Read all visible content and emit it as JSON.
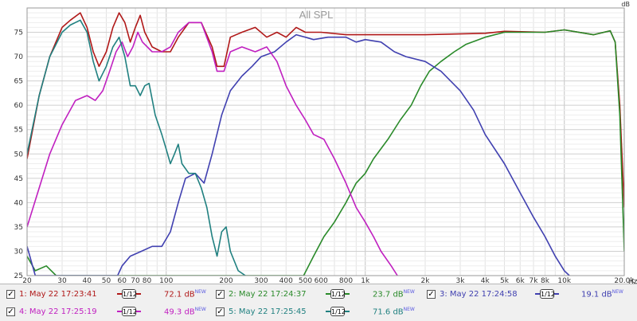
{
  "chart_data": {
    "type": "line",
    "title": "All SPL",
    "ylabel": "dB",
    "x_unit_label": "Hz",
    "x_scale": "log",
    "xlim": [
      20,
      20000
    ],
    "ylim": [
      25,
      80
    ],
    "grid": true,
    "y_ticks": [
      "25",
      "30",
      "35",
      "40",
      "45",
      "50",
      "55",
      "60",
      "65",
      "70",
      "75"
    ],
    "x_ticks": [
      {
        "v": 20,
        "t": "20"
      },
      {
        "v": 30,
        "t": "30"
      },
      {
        "v": 40,
        "t": "40"
      },
      {
        "v": 50,
        "t": "50"
      },
      {
        "v": 60,
        "t": "60"
      },
      {
        "v": 70,
        "t": "70"
      },
      {
        "v": 80,
        "t": "80"
      },
      {
        "v": 100,
        "t": "100"
      },
      {
        "v": 200,
        "t": "200"
      },
      {
        "v": 300,
        "t": "300"
      },
      {
        "v": 400,
        "t": "400"
      },
      {
        "v": 500,
        "t": "500"
      },
      {
        "v": 600,
        "t": "600"
      },
      {
        "v": 800,
        "t": "800"
      },
      {
        "v": 1000,
        "t": "1k"
      },
      {
        "v": 2000,
        "t": "2k"
      },
      {
        "v": 3000,
        "t": "3k"
      },
      {
        "v": 4000,
        "t": "4k"
      },
      {
        "v": 5000,
        "t": "5k"
      },
      {
        "v": 6000,
        "t": "6k"
      },
      {
        "v": 7000,
        "t": "7k"
      },
      {
        "v": 8000,
        "t": "8k"
      },
      {
        "v": 10000,
        "t": "10k"
      },
      {
        "v": 20000,
        "t": "20.0k"
      }
    ],
    "series": [
      {
        "name": "1: May 22 17:23:41",
        "color": "#b01818",
        "smoothing": "1/12",
        "value": "72.1 dB",
        "badge": "NEW",
        "points": [
          [
            20,
            49
          ],
          [
            23,
            62
          ],
          [
            26,
            70
          ],
          [
            30,
            76
          ],
          [
            33,
            77.5
          ],
          [
            37,
            79
          ],
          [
            40,
            76
          ],
          [
            43,
            71
          ],
          [
            46,
            68
          ],
          [
            50,
            71
          ],
          [
            54,
            76
          ],
          [
            58,
            79
          ],
          [
            62,
            77
          ],
          [
            66,
            73
          ],
          [
            70,
            76
          ],
          [
            74,
            78.5
          ],
          [
            78,
            75
          ],
          [
            85,
            72
          ],
          [
            95,
            71
          ],
          [
            105,
            71
          ],
          [
            115,
            74
          ],
          [
            130,
            77
          ],
          [
            150,
            77
          ],
          [
            170,
            72
          ],
          [
            180,
            68
          ],
          [
            195,
            68
          ],
          [
            210,
            74
          ],
          [
            240,
            75
          ],
          [
            280,
            76
          ],
          [
            320,
            74
          ],
          [
            360,
            75
          ],
          [
            400,
            74
          ],
          [
            450,
            76
          ],
          [
            500,
            75
          ],
          [
            600,
            75
          ],
          [
            800,
            74.5
          ],
          [
            1000,
            74.5
          ],
          [
            2000,
            74.5
          ],
          [
            4000,
            74.8
          ],
          [
            5000,
            75.2
          ],
          [
            8000,
            75
          ],
          [
            10000,
            75.5
          ],
          [
            14000,
            74.5
          ],
          [
            17000,
            75.3
          ],
          [
            18000,
            73
          ],
          [
            19000,
            60
          ],
          [
            20000,
            39
          ]
        ]
      },
      {
        "name": "2: May 22 17:24:37",
        "color": "#2a8a2a",
        "smoothing": "1/12",
        "value": "23.7 dB",
        "badge": "NEW",
        "points": [
          [
            20,
            29
          ],
          [
            22,
            26
          ],
          [
            25,
            27
          ],
          [
            28,
            25
          ],
          [
            490,
            25
          ],
          [
            550,
            29
          ],
          [
            620,
            33
          ],
          [
            700,
            36
          ],
          [
            800,
            40
          ],
          [
            900,
            44
          ],
          [
            1000,
            46
          ],
          [
            1100,
            49
          ],
          [
            1300,
            53
          ],
          [
            1500,
            57
          ],
          [
            1700,
            60
          ],
          [
            1900,
            64
          ],
          [
            2100,
            67
          ],
          [
            2400,
            69
          ],
          [
            2800,
            71
          ],
          [
            3200,
            72.5
          ],
          [
            4000,
            74
          ],
          [
            5000,
            75
          ],
          [
            8000,
            75
          ],
          [
            10000,
            75.5
          ],
          [
            14000,
            74.5
          ],
          [
            17000,
            75.3
          ],
          [
            18000,
            73
          ],
          [
            19000,
            58
          ],
          [
            20000,
            30
          ]
        ]
      },
      {
        "name": "3: May 22 17:24:58",
        "color": "#4040b0",
        "smoothing": "1/12",
        "value": "19.1 dB",
        "badge": "NEW",
        "points": [
          [
            20,
            31
          ],
          [
            22,
            25
          ],
          [
            57,
            25
          ],
          [
            60,
            27
          ],
          [
            66,
            29
          ],
          [
            75,
            30
          ],
          [
            85,
            31
          ],
          [
            95,
            31
          ],
          [
            105,
            34
          ],
          [
            115,
            40
          ],
          [
            125,
            45
          ],
          [
            140,
            46
          ],
          [
            155,
            44
          ],
          [
            170,
            50
          ],
          [
            190,
            58
          ],
          [
            210,
            63
          ],
          [
            240,
            66
          ],
          [
            270,
            68
          ],
          [
            300,
            70
          ],
          [
            350,
            71
          ],
          [
            400,
            73
          ],
          [
            450,
            74.5
          ],
          [
            500,
            74
          ],
          [
            550,
            73.5
          ],
          [
            650,
            74
          ],
          [
            800,
            74
          ],
          [
            900,
            73
          ],
          [
            1000,
            73.5
          ],
          [
            1200,
            73
          ],
          [
            1400,
            71
          ],
          [
            1600,
            70
          ],
          [
            2000,
            69
          ],
          [
            2400,
            67
          ],
          [
            3000,
            63
          ],
          [
            3500,
            59
          ],
          [
            4000,
            54
          ],
          [
            5000,
            48
          ],
          [
            6000,
            42
          ],
          [
            7000,
            37
          ],
          [
            8000,
            33
          ],
          [
            9000,
            29
          ],
          [
            10000,
            26
          ],
          [
            10600,
            25
          ]
        ]
      },
      {
        "name": "4: May 22 17:25:19",
        "color": "#c020c0",
        "smoothing": "1/12",
        "value": "49.3 dB",
        "badge": "NEW",
        "points": [
          [
            20,
            35
          ],
          [
            23,
            43
          ],
          [
            26,
            50
          ],
          [
            30,
            56
          ],
          [
            35,
            61
          ],
          [
            40,
            62
          ],
          [
            44,
            61
          ],
          [
            48,
            63
          ],
          [
            52,
            67
          ],
          [
            56,
            71
          ],
          [
            60,
            73
          ],
          [
            64,
            70
          ],
          [
            68,
            72
          ],
          [
            72,
            75
          ],
          [
            76,
            73
          ],
          [
            85,
            71
          ],
          [
            95,
            71
          ],
          [
            105,
            72
          ],
          [
            115,
            75
          ],
          [
            130,
            77
          ],
          [
            150,
            77
          ],
          [
            170,
            71
          ],
          [
            180,
            67
          ],
          [
            195,
            67
          ],
          [
            210,
            71
          ],
          [
            240,
            72
          ],
          [
            280,
            71
          ],
          [
            320,
            72
          ],
          [
            360,
            69
          ],
          [
            400,
            64
          ],
          [
            450,
            60
          ],
          [
            500,
            57
          ],
          [
            550,
            54
          ],
          [
            620,
            53
          ],
          [
            700,
            49
          ],
          [
            800,
            44
          ],
          [
            900,
            39
          ],
          [
            1000,
            36
          ],
          [
            1100,
            33
          ],
          [
            1200,
            30
          ],
          [
            1350,
            27
          ],
          [
            1450,
            25
          ]
        ]
      },
      {
        "name": "5: May 22 17:25:45",
        "color": "#208080",
        "smoothing": "1/12",
        "value": "71.6 dB",
        "badge": "NEW",
        "points": [
          [
            20,
            50
          ],
          [
            23,
            62
          ],
          [
            26,
            70
          ],
          [
            30,
            75
          ],
          [
            33,
            76.5
          ],
          [
            37,
            77.5
          ],
          [
            40,
            75
          ],
          [
            43,
            69
          ],
          [
            46,
            65
          ],
          [
            50,
            68
          ],
          [
            54,
            72
          ],
          [
            58,
            74
          ],
          [
            62,
            70
          ],
          [
            66,
            64
          ],
          [
            70,
            64
          ],
          [
            74,
            62
          ],
          [
            78,
            64
          ],
          [
            82,
            64.5
          ],
          [
            88,
            58
          ],
          [
            95,
            54
          ],
          [
            100,
            51
          ],
          [
            105,
            48
          ],
          [
            110,
            50
          ],
          [
            115,
            52
          ],
          [
            120,
            48
          ],
          [
            130,
            46
          ],
          [
            140,
            46
          ],
          [
            150,
            43
          ],
          [
            160,
            39
          ],
          [
            170,
            33
          ],
          [
            180,
            29
          ],
          [
            190,
            34
          ],
          [
            200,
            35
          ],
          [
            210,
            30
          ],
          [
            230,
            26
          ],
          [
            250,
            25
          ]
        ]
      }
    ]
  }
}
